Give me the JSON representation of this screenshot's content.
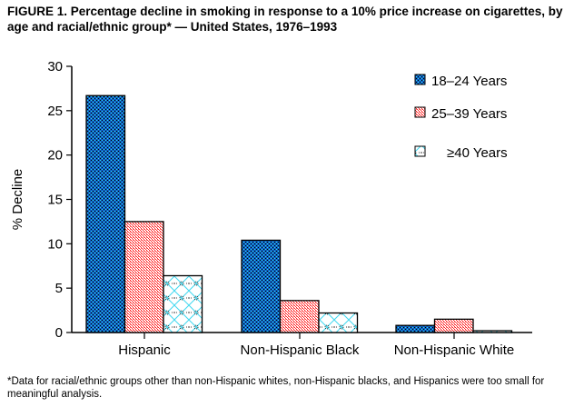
{
  "title": "FIGURE 1. Percentage decline in smoking in response to a 10% price increase on cigarettes, by age and racial/ethnic group* — United States, 1976–1993",
  "footnote": "*Data for racial/ethnic groups other than non-Hispanic whites, non-Hispanic blacks, and Hispanics were too small for meaningful analysis.",
  "chart_data": {
    "type": "bar",
    "categories": [
      "Hispanic",
      "Non-Hispanic Black",
      "Non-Hispanic White"
    ],
    "series": [
      {
        "name": "18–24 Years",
        "values": [
          26.7,
          10.4,
          0.8
        ],
        "color": "#1a8fd8"
      },
      {
        "name": "25–39 Years",
        "values": [
          12.5,
          3.6,
          1.5
        ],
        "color": "#ff3030"
      },
      {
        "name": "≥40 Years",
        "values": [
          6.4,
          2.2,
          0.2
        ],
        "color": "#40e0f0"
      }
    ],
    "ylabel": "% Decline",
    "xlabel": "",
    "ylim": [
      0,
      30
    ],
    "yticks": [
      0,
      5,
      10,
      15,
      20,
      25,
      30
    ],
    "grid": false,
    "legend": "top-right"
  }
}
